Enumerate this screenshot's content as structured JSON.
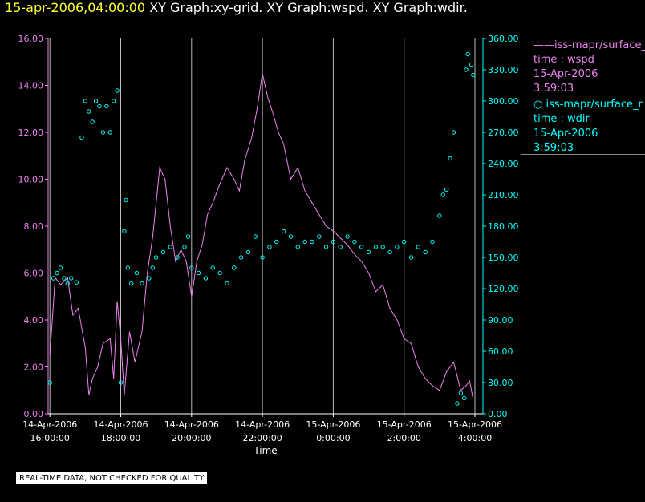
{
  "header": {
    "timestamp": "15-apr-2006,04:00:00",
    "graphs": "XY Graph:xy-grid.  XY Graph:wspd.  XY Graph:wdir."
  },
  "legend": [
    {
      "marker": "line",
      "source": "iss-mapr/surface_r",
      "label": "time : wspd",
      "date": "15-Apr-2006",
      "time": "3:59:03",
      "color": "#ee82ee"
    },
    {
      "marker": "circle",
      "source": "iss-mapr/surface_r",
      "label": "time : wdir",
      "date": "15-Apr-2006",
      "time": "3:59:03",
      "color": "#00ffff"
    }
  ],
  "note": "REAL-TIME DATA, NOT CHECKED FOR QUALITY",
  "chart_data": {
    "type": "line",
    "xlabel": "Time",
    "x_ticks": [
      {
        "date": "14-Apr-2006",
        "time": "16:00:00",
        "hours": 0
      },
      {
        "date": "14-Apr-2006",
        "time": "18:00:00",
        "hours": 2
      },
      {
        "date": "14-Apr-2006",
        "time": "20:00:00",
        "hours": 4
      },
      {
        "date": "14-Apr-2006",
        "time": "22:00:00",
        "hours": 6
      },
      {
        "date": "15-Apr-2006",
        "time": "0:00:00",
        "hours": 8
      },
      {
        "date": "15-Apr-2006",
        "time": "2:00:00",
        "hours": 10
      },
      {
        "date": "15-Apr-2006",
        "time": "4:00:00",
        "hours": 12
      }
    ],
    "xlim_hours": [
      -0.05,
      12.0
    ],
    "y_left": {
      "ylim": [
        0,
        16
      ],
      "ticks": [
        "0.00",
        "2.00",
        "4.00",
        "6.00",
        "8.00",
        "10.00",
        "12.00",
        "14.00",
        "16.00"
      ],
      "color": "#ee82ee"
    },
    "y_right": {
      "ylim": [
        0,
        360
      ],
      "ticks": [
        "0.00",
        "30.00",
        "60.00",
        "90.00",
        "120.00",
        "150.00",
        "180.00",
        "210.00",
        "240.00",
        "270.00",
        "300.00",
        "330.00",
        "360.00"
      ],
      "color": "#00ffff"
    },
    "grid": "vertical",
    "series": [
      {
        "axis": "left",
        "style": "line",
        "color": "#ee82ee",
        "points": [
          [
            0.0,
            2.5
          ],
          [
            0.15,
            5.8
          ],
          [
            0.3,
            5.5
          ],
          [
            0.5,
            5.8
          ],
          [
            0.65,
            4.2
          ],
          [
            0.8,
            4.5
          ],
          [
            1.0,
            2.8
          ],
          [
            1.1,
            0.8
          ],
          [
            1.2,
            1.5
          ],
          [
            1.35,
            2.0
          ],
          [
            1.5,
            3.0
          ],
          [
            1.7,
            3.2
          ],
          [
            1.8,
            1.5
          ],
          [
            1.9,
            4.8
          ],
          [
            2.0,
            3.2
          ],
          [
            2.1,
            0.8
          ],
          [
            2.25,
            3.5
          ],
          [
            2.4,
            2.2
          ],
          [
            2.6,
            3.5
          ],
          [
            2.75,
            6.0
          ],
          [
            2.9,
            7.5
          ],
          [
            3.0,
            9.0
          ],
          [
            3.1,
            10.5
          ],
          [
            3.25,
            10.0
          ],
          [
            3.4,
            8.0
          ],
          [
            3.55,
            6.5
          ],
          [
            3.7,
            7.0
          ],
          [
            3.85,
            6.5
          ],
          [
            4.0,
            5.0
          ],
          [
            4.15,
            6.5
          ],
          [
            4.3,
            7.2
          ],
          [
            4.45,
            8.5
          ],
          [
            4.6,
            9.0
          ],
          [
            4.8,
            9.8
          ],
          [
            5.0,
            10.5
          ],
          [
            5.2,
            10.0
          ],
          [
            5.35,
            9.5
          ],
          [
            5.5,
            10.8
          ],
          [
            5.7,
            11.8
          ],
          [
            5.85,
            13.0
          ],
          [
            6.0,
            14.5
          ],
          [
            6.15,
            13.5
          ],
          [
            6.3,
            12.8
          ],
          [
            6.45,
            12.0
          ],
          [
            6.6,
            11.5
          ],
          [
            6.8,
            10.0
          ],
          [
            7.0,
            10.5
          ],
          [
            7.2,
            9.5
          ],
          [
            7.4,
            9.0
          ],
          [
            7.6,
            8.5
          ],
          [
            7.8,
            8.0
          ],
          [
            8.0,
            7.8
          ],
          [
            8.2,
            7.5
          ],
          [
            8.4,
            7.2
          ],
          [
            8.6,
            6.8
          ],
          [
            8.8,
            6.5
          ],
          [
            9.0,
            6.0
          ],
          [
            9.2,
            5.2
          ],
          [
            9.4,
            5.5
          ],
          [
            9.6,
            4.5
          ],
          [
            9.8,
            4.0
          ],
          [
            10.0,
            3.2
          ],
          [
            10.2,
            3.0
          ],
          [
            10.4,
            2.0
          ],
          [
            10.6,
            1.5
          ],
          [
            10.8,
            1.2
          ],
          [
            11.0,
            1.0
          ],
          [
            11.2,
            1.8
          ],
          [
            11.4,
            2.2
          ],
          [
            11.6,
            1.0
          ],
          [
            11.75,
            1.2
          ],
          [
            11.85,
            1.4
          ],
          [
            11.95,
            0.6
          ]
        ]
      },
      {
        "axis": "right",
        "style": "scatter",
        "color": "#00ffff",
        "points": [
          [
            0.0,
            30
          ],
          [
            0.1,
            130
          ],
          [
            0.2,
            135
          ],
          [
            0.3,
            140
          ],
          [
            0.4,
            130
          ],
          [
            0.5,
            125
          ],
          [
            0.6,
            130
          ],
          [
            0.75,
            126
          ],
          [
            0.9,
            265
          ],
          [
            1.0,
            300
          ],
          [
            1.1,
            290
          ],
          [
            1.2,
            280
          ],
          [
            1.3,
            300
          ],
          [
            1.4,
            295
          ],
          [
            1.5,
            270
          ],
          [
            1.6,
            295
          ],
          [
            1.7,
            270
          ],
          [
            1.8,
            300
          ],
          [
            1.9,
            310
          ],
          [
            2.0,
            30
          ],
          [
            2.1,
            175
          ],
          [
            2.15,
            205
          ],
          [
            2.2,
            140
          ],
          [
            2.3,
            125
          ],
          [
            2.45,
            135
          ],
          [
            2.6,
            125
          ],
          [
            2.8,
            130
          ],
          [
            2.9,
            140
          ],
          [
            3.0,
            150
          ],
          [
            3.2,
            155
          ],
          [
            3.4,
            160
          ],
          [
            3.6,
            150
          ],
          [
            3.8,
            160
          ],
          [
            3.9,
            170
          ],
          [
            4.0,
            140
          ],
          [
            4.2,
            135
          ],
          [
            4.4,
            130
          ],
          [
            4.6,
            140
          ],
          [
            4.8,
            135
          ],
          [
            5.0,
            125
          ],
          [
            5.2,
            140
          ],
          [
            5.4,
            150
          ],
          [
            5.6,
            155
          ],
          [
            5.8,
            170
          ],
          [
            6.0,
            150
          ],
          [
            6.2,
            160
          ],
          [
            6.4,
            165
          ],
          [
            6.6,
            175
          ],
          [
            6.8,
            170
          ],
          [
            7.0,
            160
          ],
          [
            7.2,
            165
          ],
          [
            7.4,
            165
          ],
          [
            7.6,
            170
          ],
          [
            7.8,
            160
          ],
          [
            8.0,
            165
          ],
          [
            8.2,
            160
          ],
          [
            8.4,
            170
          ],
          [
            8.6,
            165
          ],
          [
            8.8,
            160
          ],
          [
            9.0,
            155
          ],
          [
            9.2,
            160
          ],
          [
            9.4,
            160
          ],
          [
            9.6,
            155
          ],
          [
            9.8,
            160
          ],
          [
            10.0,
            165
          ],
          [
            10.2,
            150
          ],
          [
            10.4,
            160
          ],
          [
            10.6,
            155
          ],
          [
            10.8,
            165
          ],
          [
            11.0,
            190
          ],
          [
            11.1,
            210
          ],
          [
            11.2,
            215
          ],
          [
            11.3,
            245
          ],
          [
            11.4,
            270
          ],
          [
            11.5,
            10
          ],
          [
            11.6,
            20
          ],
          [
            11.7,
            15
          ],
          [
            11.75,
            330
          ],
          [
            11.8,
            345
          ],
          [
            11.9,
            335
          ],
          [
            11.95,
            325
          ]
        ]
      }
    ]
  }
}
